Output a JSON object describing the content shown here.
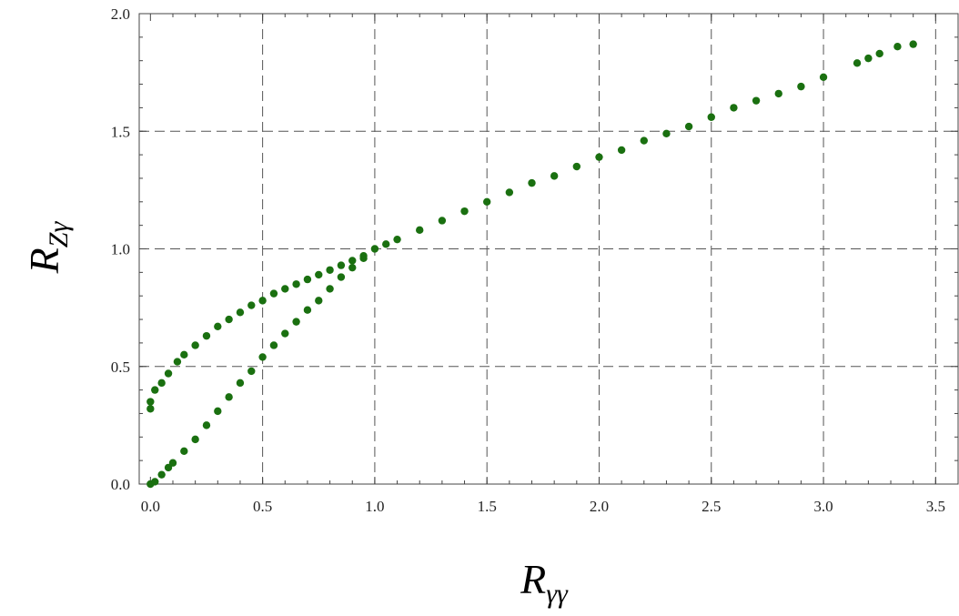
{
  "chart_data": {
    "type": "scatter",
    "xlabel": {
      "main": "R",
      "sub": "γγ"
    },
    "ylabel": {
      "main": "R",
      "sub": "Zγ"
    },
    "xlim": [
      -0.05,
      3.6
    ],
    "ylim": [
      0,
      2
    ],
    "x_ticks": [
      "0.0",
      "0.5",
      "1.0",
      "1.5",
      "2.0",
      "2.5",
      "3.0",
      "3.5"
    ],
    "y_ticks": [
      "0.0",
      "0.5",
      "1.0",
      "1.5",
      "2.0"
    ],
    "grid": true,
    "legend": "none",
    "marker_color": "#1a7010",
    "series": [
      {
        "points": [
          [
            0.0,
            0.32
          ],
          [
            0.0,
            0.35
          ],
          [
            0.02,
            0.4
          ],
          [
            0.05,
            0.43
          ],
          [
            0.08,
            0.47
          ],
          [
            0.12,
            0.52
          ],
          [
            0.15,
            0.55
          ],
          [
            0.2,
            0.59
          ],
          [
            0.25,
            0.63
          ],
          [
            0.3,
            0.67
          ],
          [
            0.35,
            0.7
          ],
          [
            0.4,
            0.73
          ],
          [
            0.45,
            0.76
          ],
          [
            0.5,
            0.78
          ],
          [
            0.55,
            0.81
          ],
          [
            0.6,
            0.83
          ],
          [
            0.65,
            0.85
          ],
          [
            0.7,
            0.87
          ],
          [
            0.75,
            0.89
          ],
          [
            0.8,
            0.91
          ],
          [
            0.85,
            0.93
          ],
          [
            0.9,
            0.95
          ],
          [
            0.95,
            0.97
          ],
          [
            1.0,
            1.0
          ],
          [
            0.0,
            0.0
          ],
          [
            0.02,
            0.01
          ],
          [
            0.05,
            0.04
          ],
          [
            0.08,
            0.07
          ],
          [
            0.1,
            0.09
          ],
          [
            0.15,
            0.14
          ],
          [
            0.2,
            0.19
          ],
          [
            0.25,
            0.25
          ],
          [
            0.3,
            0.31
          ],
          [
            0.35,
            0.37
          ],
          [
            0.4,
            0.43
          ],
          [
            0.45,
            0.48
          ],
          [
            0.5,
            0.54
          ],
          [
            0.55,
            0.59
          ],
          [
            0.6,
            0.64
          ],
          [
            0.65,
            0.69
          ],
          [
            0.7,
            0.74
          ],
          [
            0.75,
            0.78
          ],
          [
            0.8,
            0.83
          ],
          [
            0.85,
            0.88
          ],
          [
            0.9,
            0.92
          ],
          [
            0.95,
            0.96
          ],
          [
            1.05,
            1.02
          ],
          [
            1.1,
            1.04
          ],
          [
            1.2,
            1.08
          ],
          [
            1.3,
            1.12
          ],
          [
            1.4,
            1.16
          ],
          [
            1.5,
            1.2
          ],
          [
            1.6,
            1.24
          ],
          [
            1.7,
            1.28
          ],
          [
            1.8,
            1.31
          ],
          [
            1.9,
            1.35
          ],
          [
            2.0,
            1.39
          ],
          [
            2.1,
            1.42
          ],
          [
            2.2,
            1.46
          ],
          [
            2.3,
            1.49
          ],
          [
            2.4,
            1.52
          ],
          [
            2.5,
            1.56
          ],
          [
            2.6,
            1.6
          ],
          [
            2.7,
            1.63
          ],
          [
            2.8,
            1.66
          ],
          [
            2.9,
            1.69
          ],
          [
            3.0,
            1.73
          ],
          [
            3.15,
            1.79
          ],
          [
            3.2,
            1.81
          ],
          [
            3.25,
            1.83
          ],
          [
            3.33,
            1.86
          ],
          [
            3.4,
            1.87
          ]
        ]
      }
    ]
  }
}
